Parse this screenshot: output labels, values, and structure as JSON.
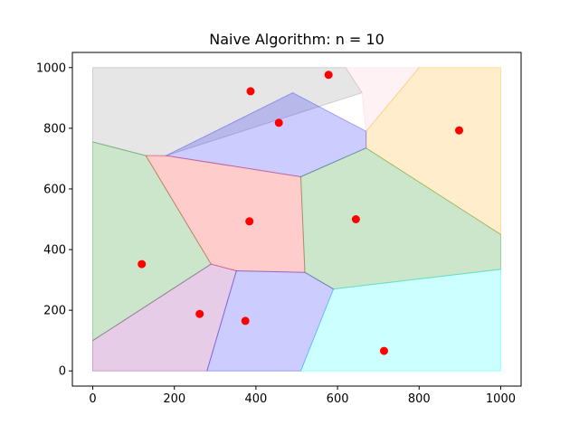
{
  "chart_data": {
    "type": "scatter",
    "title": "Naive Algorithm: n = 10",
    "xlabel": "",
    "ylabel": "",
    "xlim": [
      -50,
      1050
    ],
    "ylim": [
      -50,
      1050
    ],
    "x_ticks": [
      0,
      200,
      400,
      600,
      800,
      1000
    ],
    "y_ticks": [
      0,
      200,
      400,
      600,
      800,
      1000
    ],
    "grid": false,
    "points": {
      "color": "#ff0000",
      "x": [
        387,
        456,
        578,
        898,
        384,
        645,
        120,
        262,
        374,
        714
      ],
      "y": [
        922,
        818,
        976,
        793,
        493,
        500,
        352,
        188,
        165,
        66
      ]
    },
    "regions": [
      {
        "name": "grey",
        "color": "#808080",
        "polygon": [
          [
            0,
            1000
          ],
          [
            620,
            1000
          ],
          [
            660,
            917
          ],
          [
            180,
            710
          ],
          [
            130,
            710
          ],
          [
            0,
            755
          ]
        ]
      },
      {
        "name": "pink",
        "color": "#ffc0cb",
        "polygon": [
          [
            620,
            1000
          ],
          [
            800,
            1000
          ],
          [
            670,
            790
          ],
          [
            660,
            917
          ]
        ]
      },
      {
        "name": "orange",
        "color": "#ffa500",
        "polygon": [
          [
            800,
            1000
          ],
          [
            1000,
            1000
          ],
          [
            1000,
            450
          ],
          [
            670,
            735
          ],
          [
            670,
            790
          ]
        ]
      },
      {
        "name": "blue-top",
        "color": "#0000ff",
        "polygon": [
          [
            180,
            710
          ],
          [
            490,
            917
          ],
          [
            670,
            790
          ],
          [
            670,
            735
          ],
          [
            510,
            640
          ]
        ]
      },
      {
        "name": "green-left",
        "color": "#008000",
        "polygon": [
          [
            0,
            755
          ],
          [
            130,
            710
          ],
          [
            290,
            352
          ],
          [
            0,
            100
          ]
        ]
      },
      {
        "name": "red",
        "color": "#ff0000",
        "polygon": [
          [
            130,
            710
          ],
          [
            180,
            710
          ],
          [
            510,
            640
          ],
          [
            520,
            325
          ],
          [
            352,
            330
          ],
          [
            290,
            352
          ]
        ]
      },
      {
        "name": "green-right",
        "color": "#008000",
        "polygon": [
          [
            510,
            640
          ],
          [
            670,
            735
          ],
          [
            1000,
            450
          ],
          [
            1000,
            335
          ],
          [
            590,
            270
          ],
          [
            520,
            325
          ]
        ]
      },
      {
        "name": "purple",
        "color": "#800080",
        "polygon": [
          [
            0,
            100
          ],
          [
            290,
            352
          ],
          [
            352,
            330
          ],
          [
            280,
            0
          ],
          [
            0,
            0
          ]
        ]
      },
      {
        "name": "blue-bottom",
        "color": "#0000ff",
        "polygon": [
          [
            352,
            330
          ],
          [
            520,
            325
          ],
          [
            590,
            270
          ],
          [
            510,
            0
          ],
          [
            280,
            0
          ]
        ]
      },
      {
        "name": "cyan",
        "color": "#00ffff",
        "polygon": [
          [
            590,
            270
          ],
          [
            1000,
            335
          ],
          [
            1000,
            0
          ],
          [
            510,
            0
          ]
        ]
      }
    ]
  }
}
